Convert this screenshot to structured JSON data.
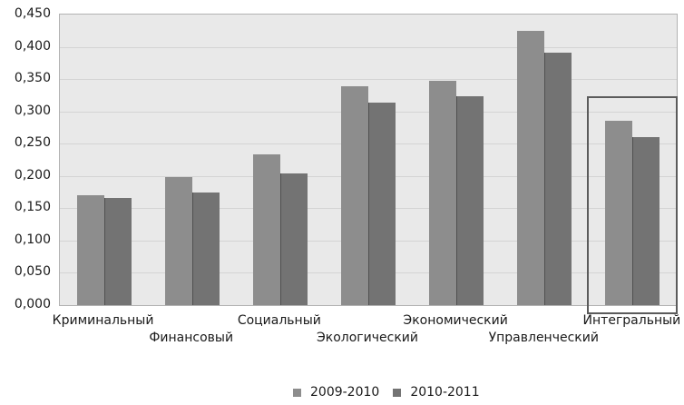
{
  "chart_data": {
    "type": "bar",
    "title": "",
    "xlabel": "",
    "ylabel": "",
    "categories": [
      "Криминальный",
      "Финансовый",
      "Социальный",
      "Экологический",
      "Экономический",
      "Управленческий",
      "Интегральный"
    ],
    "series": [
      {
        "name": "2009-2010",
        "color": "#8d8d8d",
        "values": [
          0.17,
          0.198,
          0.234,
          0.339,
          0.347,
          0.425,
          0.285
        ]
      },
      {
        "name": "2010-2011",
        "color": "#737373",
        "values": [
          0.166,
          0.175,
          0.204,
          0.314,
          0.324,
          0.391,
          0.26
        ]
      }
    ],
    "ylim": [
      0,
      0.45
    ],
    "ytick_step": 0.05,
    "ytick_labels": [
      "0,000",
      "0,050",
      "0,100",
      "0,150",
      "0,200",
      "0,250",
      "0,300",
      "0,350",
      "0,400",
      "0,450"
    ],
    "decimal_separator": ",",
    "grid": true,
    "plot_background": "#e9e9e9",
    "gridline_color": "#d4d4d4",
    "legend_position": "bottom",
    "highlight": {
      "category": "Интегральный",
      "category_index": 6,
      "style": "dark-gray box around group",
      "border_color": "#5b5b5b"
    }
  }
}
